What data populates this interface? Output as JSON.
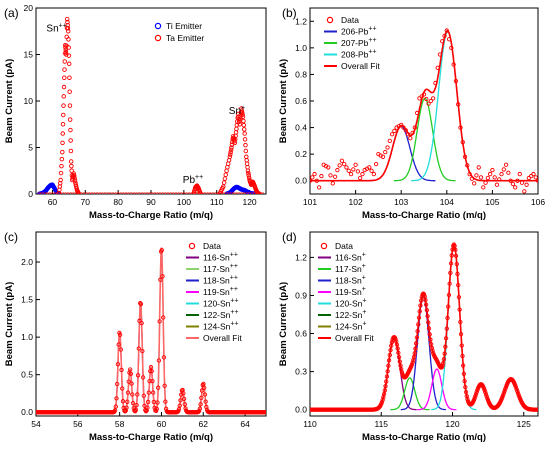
{
  "chart_data": [
    {
      "panel": "(a)",
      "type": "scatter",
      "xlabel": "Mass-to-Charge Ratio (m/q)",
      "ylabel": "Beam Current (pA)",
      "xlim": [
        55,
        125
      ],
      "ylim": [
        0,
        20
      ],
      "xticks": [
        60,
        70,
        80,
        90,
        100,
        110,
        120
      ],
      "yticks": [
        0,
        5,
        10,
        15,
        20
      ],
      "xtick_labels": [
        "60",
        "70",
        "80",
        "90",
        "100",
        "110",
        "120"
      ],
      "ytick_labels": [
        "0",
        "5",
        "10",
        "15",
        "20"
      ],
      "legend_position": "top-center",
      "annotations": [
        {
          "text": "Sn",
          "sup": "++",
          "x": 60,
          "y": 17.5
        },
        {
          "text": "Pb",
          "sup": "++",
          "x": 101.5,
          "y": 1.2
        },
        {
          "text": "Sn",
          "sup": "+",
          "x": 115.5,
          "y": 8.6
        }
      ],
      "series": [
        {
          "name": "Ti Emitter",
          "marker": "circle",
          "color": "#0000ff",
          "x": [
            56,
            57,
            58,
            58.5,
            59,
            59.5,
            60,
            60.5,
            61,
            61.5,
            62,
            113,
            114,
            114.5,
            115,
            115.5,
            116,
            116.5,
            117,
            117.5,
            118,
            118.5,
            119,
            119.5,
            120,
            121,
            122
          ],
          "y": [
            0.02,
            0.1,
            0.35,
            0.6,
            0.8,
            0.95,
            1.0,
            0.7,
            0.35,
            0.1,
            0.02,
            0.02,
            0.15,
            0.3,
            0.5,
            0.65,
            0.75,
            0.7,
            0.6,
            0.5,
            0.45,
            0.4,
            0.3,
            0.2,
            0.12,
            0.05,
            0.02
          ]
        },
        {
          "name": "Ta Emitter",
          "marker": "circle",
          "color": "#ff0000",
          "x": [
            62,
            62.5,
            63,
            63.3,
            63.6,
            63.9,
            64.2,
            64.5,
            64.8,
            65.1,
            65.4,
            65.7,
            66,
            66.5,
            67,
            67.5,
            68,
            103,
            103.5,
            104,
            104.5,
            105,
            111,
            112,
            113,
            114,
            114.5,
            115,
            115.5,
            116,
            116.5,
            117,
            117.5,
            118,
            118.5,
            119,
            119.5,
            120,
            120.5,
            121,
            121.5,
            122,
            122.5,
            123
          ],
          "y": [
            0.1,
            1.5,
            4.5,
            8.5,
            12.5,
            16.0,
            15.0,
            18.8,
            17.5,
            14.0,
            8.0,
            3.5,
            1.5,
            2.2,
            1.2,
            0.4,
            0.05,
            0.05,
            0.7,
            0.9,
            0.6,
            0.1,
            0.1,
            0.8,
            2.5,
            4.0,
            5.0,
            6.2,
            5.5,
            7.0,
            8.6,
            7.5,
            9.2,
            8.3,
            6.5,
            4.0,
            2.5,
            1.5,
            1.0,
            1.3,
            0.9,
            0.4,
            0.1,
            0.02
          ]
        }
      ]
    },
    {
      "panel": "(b)",
      "type": "line",
      "xlabel": "Mass-to-Charge Ratio (m/q)",
      "ylabel": "Beam Current (pA)",
      "xlim": [
        101,
        106
      ],
      "ylim": [
        -0.1,
        1.3
      ],
      "xticks": [
        101,
        102,
        103,
        104,
        105,
        106
      ],
      "yticks": [
        0.0,
        0.2,
        0.4,
        0.6,
        0.8,
        1.0,
        1.2
      ],
      "xtick_labels": [
        "101",
        "102",
        "103",
        "104",
        "105",
        "106"
      ],
      "ytick_labels": [
        "0.0",
        "0.2",
        "0.4",
        "0.6",
        "0.8",
        "1.0",
        "1.2"
      ],
      "legend_position": "top-left",
      "gauss": [
        {
          "name": "206-Pb",
          "sup": "++",
          "color": "#1f1fcc",
          "center": 103.0,
          "sigma": 0.19,
          "amp": 0.41
        },
        {
          "name": "207-Pb",
          "sup": "++",
          "color": "#22cc22",
          "center": 103.52,
          "sigma": 0.17,
          "amp": 0.62
        },
        {
          "name": "208-Pb",
          "sup": "++",
          "color": "#22dddd",
          "center": 104.02,
          "sigma": 0.2,
          "amp": 1.12
        }
      ],
      "fit": {
        "name": "Overall Fit",
        "color": "#ff0000"
      },
      "data_series": {
        "name": "Data",
        "color": "#ff0000",
        "x": [
          101,
          101.1,
          101.2,
          101.3,
          101.4,
          101.5,
          101.6,
          101.7,
          101.8,
          101.9,
          102,
          102.1,
          102.2,
          102.3,
          102.4,
          102.5,
          102.6,
          102.7,
          102.8,
          102.9,
          103,
          103.1,
          103.2,
          103.3,
          103.4,
          103.5,
          103.6,
          103.7,
          103.8,
          103.9,
          104,
          104.1,
          104.2,
          104.3,
          104.4,
          104.5,
          104.6,
          104.7,
          104.8,
          104.9,
          105,
          105.1,
          105.2,
          105.3,
          105.4,
          105.5,
          105.6,
          105.7,
          105.8,
          105.9,
          106
        ],
        "y": [
          0.0,
          0.05,
          -0.05,
          0.12,
          0.1,
          -0.02,
          0.08,
          0.15,
          0.1,
          0.05,
          0.12,
          0.02,
          0.08,
          0.1,
          0.05,
          0.2,
          0.18,
          0.25,
          0.35,
          0.4,
          0.42,
          0.38,
          0.32,
          0.4,
          0.62,
          0.65,
          0.58,
          0.62,
          0.85,
          1.05,
          1.13,
          1.0,
          0.75,
          0.4,
          0.18,
          0.05,
          -0.02,
          0.1,
          -0.05,
          0.02,
          0.08,
          -0.03,
          0.05,
          0.12,
          0.0,
          -0.05,
          0.05,
          -0.08,
          0.02,
          0.05,
          0.0
        ]
      }
    },
    {
      "panel": "(c)",
      "type": "line",
      "xlabel": "Mass-to-Charge Ratio (m/q)",
      "ylabel": "Beam Current (pA)",
      "xlim": [
        54,
        65
      ],
      "ylim": [
        -0.05,
        2.4
      ],
      "xticks": [
        54,
        56,
        58,
        60,
        62,
        64
      ],
      "yticks": [
        0.0,
        0.5,
        1.0,
        1.5,
        2.0
      ],
      "xtick_labels": [
        "54",
        "56",
        "58",
        "60",
        "62",
        "64"
      ],
      "ytick_labels": [
        "0.0",
        "0.5",
        "1.0",
        "1.5",
        "2.0"
      ],
      "legend_position": "top-right",
      "gauss": [
        {
          "name": "116-Sn",
          "sup": "++",
          "color": "#800080",
          "center": 58.0,
          "sigma": 0.08,
          "amp": 1.07
        },
        {
          "name": "117-Sn",
          "sup": "++",
          "color": "#8fd36e",
          "center": 58.5,
          "sigma": 0.08,
          "amp": 0.57
        },
        {
          "name": "118-Sn",
          "sup": "++",
          "color": "#1f1fcc",
          "center": 59.0,
          "sigma": 0.08,
          "amp": 1.48
        },
        {
          "name": "119-Sn",
          "sup": "++",
          "color": "#ff00ff",
          "center": 59.5,
          "sigma": 0.08,
          "amp": 0.6
        },
        {
          "name": "120-Sn",
          "sup": "++",
          "color": "#22dddd",
          "center": 60.0,
          "sigma": 0.08,
          "amp": 2.2
        },
        {
          "name": "122-Sn",
          "sup": "++",
          "color": "#006400",
          "center": 61.0,
          "sigma": 0.08,
          "amp": 0.3
        },
        {
          "name": "124-Sn",
          "sup": "++",
          "color": "#808000",
          "center": 62.0,
          "sigma": 0.08,
          "amp": 0.38
        }
      ],
      "fit": {
        "name": "Overall Fit",
        "color": "#ff6666"
      },
      "data_series": {
        "name": "Data",
        "color": "#ff0000"
      }
    },
    {
      "panel": "(d)",
      "type": "line",
      "xlabel": "Mass-to-Charge Ratio (m/q)",
      "ylabel": "Beam Current (pA)",
      "xlim": [
        110,
        126
      ],
      "ylim": [
        -0.05,
        1.4
      ],
      "xticks": [
        110,
        115,
        120,
        125
      ],
      "yticks": [
        0.0,
        0.3,
        0.6,
        0.9,
        1.2
      ],
      "xtick_labels": [
        "110",
        "115",
        "120",
        "125"
      ],
      "ytick_labels": [
        "0.0",
        "0.3",
        "0.6",
        "0.9",
        "1.2"
      ],
      "legend_position": "top-left",
      "gauss": [
        {
          "name": "116-Sn",
          "sup": "+",
          "color": "#800080",
          "center": 115.9,
          "sigma": 0.4,
          "amp": 0.57
        },
        {
          "name": "117-Sn",
          "sup": "+",
          "color": "#22cc22",
          "center": 117.0,
          "sigma": 0.35,
          "amp": 0.25
        },
        {
          "name": "118-Sn",
          "sup": "+",
          "color": "#1f1fcc",
          "center": 117.95,
          "sigma": 0.4,
          "amp": 0.9
        },
        {
          "name": "119-Sn",
          "sup": "+",
          "color": "#ff00ff",
          "center": 118.9,
          "sigma": 0.35,
          "amp": 0.32
        },
        {
          "name": "120-Sn",
          "sup": "+",
          "color": "#22dddd",
          "center": 120.1,
          "sigma": 0.4,
          "amp": 1.3
        },
        {
          "name": "122-Sn",
          "sup": "+",
          "color": "#006400",
          "center": 122.0,
          "sigma": 0.35,
          "amp": 0.0
        },
        {
          "name": "124-Sn",
          "sup": "+",
          "color": "#808000",
          "center": 124.0,
          "sigma": 0.35,
          "amp": 0.0
        }
      ],
      "extra_peaks": [
        {
          "center": 122.0,
          "sigma": 0.35,
          "amp": 0.2
        },
        {
          "center": 124.1,
          "sigma": 0.45,
          "amp": 0.24
        }
      ],
      "fit": {
        "name": "Overall Fit",
        "color": "#ff0000"
      },
      "data_series": {
        "name": "Data",
        "color": "#ff0000"
      }
    }
  ]
}
